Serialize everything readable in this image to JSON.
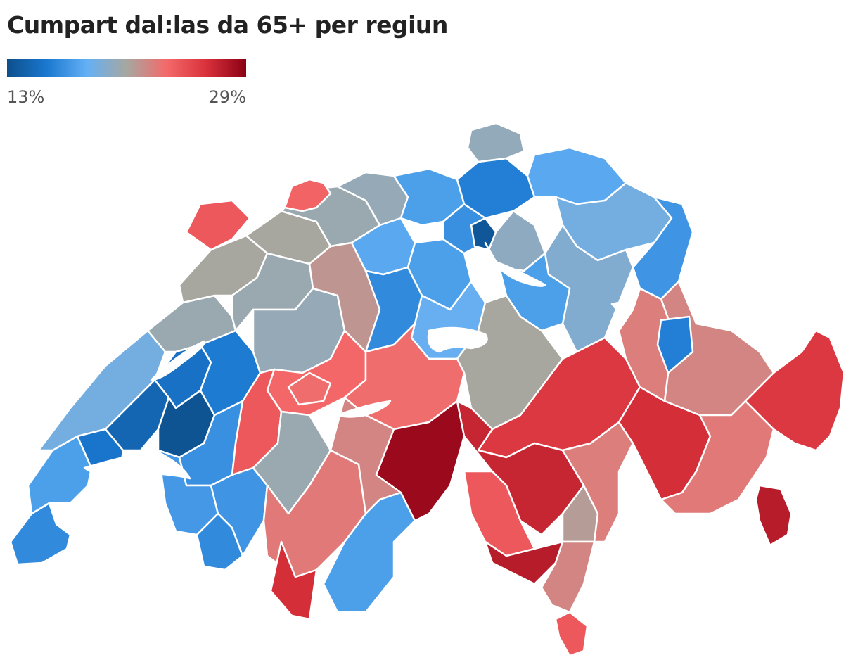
{
  "title": "Cumpart dal:las da 65+ per regiun",
  "legend": {
    "min_label": "13%",
    "max_label": "29%",
    "min_value": 13,
    "max_value": 29,
    "colors": [
      "#0d4f8b",
      "#1a78d0",
      "#63b0f5",
      "#a7a7a0",
      "#f46a6a",
      "#d9313b",
      "#8b0015"
    ]
  },
  "map": {
    "scale_min": 13,
    "scale_max": 29,
    "regions": [
      {
        "id": "geneva",
        "value": 16.5
      },
      {
        "id": "nyon",
        "value": 17.5
      },
      {
        "id": "vaud-jura-foot",
        "value": 19.0
      },
      {
        "id": "lausanne",
        "value": 15.5
      },
      {
        "id": "lavaux",
        "value": 14.5
      },
      {
        "id": "broye",
        "value": 15.2
      },
      {
        "id": "fribourg-sarine",
        "value": 13.3
      },
      {
        "id": "sense",
        "value": 15.8
      },
      {
        "id": "neuchatel",
        "value": 20.5
      },
      {
        "id": "jura",
        "value": 21.0
      },
      {
        "id": "porrentruy",
        "value": 24.5
      },
      {
        "id": "bernese-jura",
        "value": 21.0
      },
      {
        "id": "seeland",
        "value": 20.5
      },
      {
        "id": "solothurn",
        "value": 20.5
      },
      {
        "id": "basel",
        "value": 24.0
      },
      {
        "id": "aargau-west",
        "value": 20.3
      },
      {
        "id": "aargau-east",
        "value": 17.5
      },
      {
        "id": "bern-mittelland",
        "value": 20.3
      },
      {
        "id": "emmental",
        "value": 21.8
      },
      {
        "id": "oberaargau",
        "value": 18.0
      },
      {
        "id": "lucerne-west",
        "value": 16.5
      },
      {
        "id": "lucerne",
        "value": 17.5
      },
      {
        "id": "zug",
        "value": 16.8
      },
      {
        "id": "zurich-north",
        "value": 16.0
      },
      {
        "id": "zurich-city",
        "value": 13.5
      },
      {
        "id": "zurich-lake",
        "value": 20.0
      },
      {
        "id": "schaffhausen",
        "value": 20.2
      },
      {
        "id": "thurgau",
        "value": 18.0
      },
      {
        "id": "st-gallen",
        "value": 19.0
      },
      {
        "id": "rheintal",
        "value": 17.0
      },
      {
        "id": "glarus",
        "value": 19.5
      },
      {
        "id": "schwyz",
        "value": 17.5
      },
      {
        "id": "obwalden",
        "value": 18.5
      },
      {
        "id": "uri",
        "value": 21.0
      },
      {
        "id": "thun",
        "value": 23.8
      },
      {
        "id": "interlaken",
        "value": 23.5
      },
      {
        "id": "oberhasli",
        "value": 23.5
      },
      {
        "id": "saanen",
        "value": 24.5
      },
      {
        "id": "riviera",
        "value": 16.8
      },
      {
        "id": "aigle",
        "value": 17.2
      },
      {
        "id": "chablais",
        "value": 16.5
      },
      {
        "id": "martigny",
        "value": 17.0
      },
      {
        "id": "entremont",
        "value": 20.5
      },
      {
        "id": "sion",
        "value": 23.0
      },
      {
        "id": "herens",
        "value": 26.5
      },
      {
        "id": "sierre",
        "value": 22.5
      },
      {
        "id": "visp",
        "value": 17.5
      },
      {
        "id": "goms",
        "value": 28.5
      },
      {
        "id": "surselva",
        "value": 26.0
      },
      {
        "id": "leventina",
        "value": 27.0
      },
      {
        "id": "vallemaggia",
        "value": 24.5
      },
      {
        "id": "locarno",
        "value": 27.5
      },
      {
        "id": "bellinzona",
        "value": 21.5
      },
      {
        "id": "lugano",
        "value": 22.5
      },
      {
        "id": "mendrisio",
        "value": 24.5
      },
      {
        "id": "mesolcina",
        "value": 22.8
      },
      {
        "id": "hinterrhein",
        "value": 26.5
      },
      {
        "id": "chur",
        "value": 22.5
      },
      {
        "id": "prattigau",
        "value": 22.8
      },
      {
        "id": "davos",
        "value": 23.0
      },
      {
        "id": "engadin",
        "value": 26.0
      },
      {
        "id": "valposchiavo",
        "value": 27.5
      },
      {
        "id": "sarganserland",
        "value": 16.0
      }
    ]
  }
}
